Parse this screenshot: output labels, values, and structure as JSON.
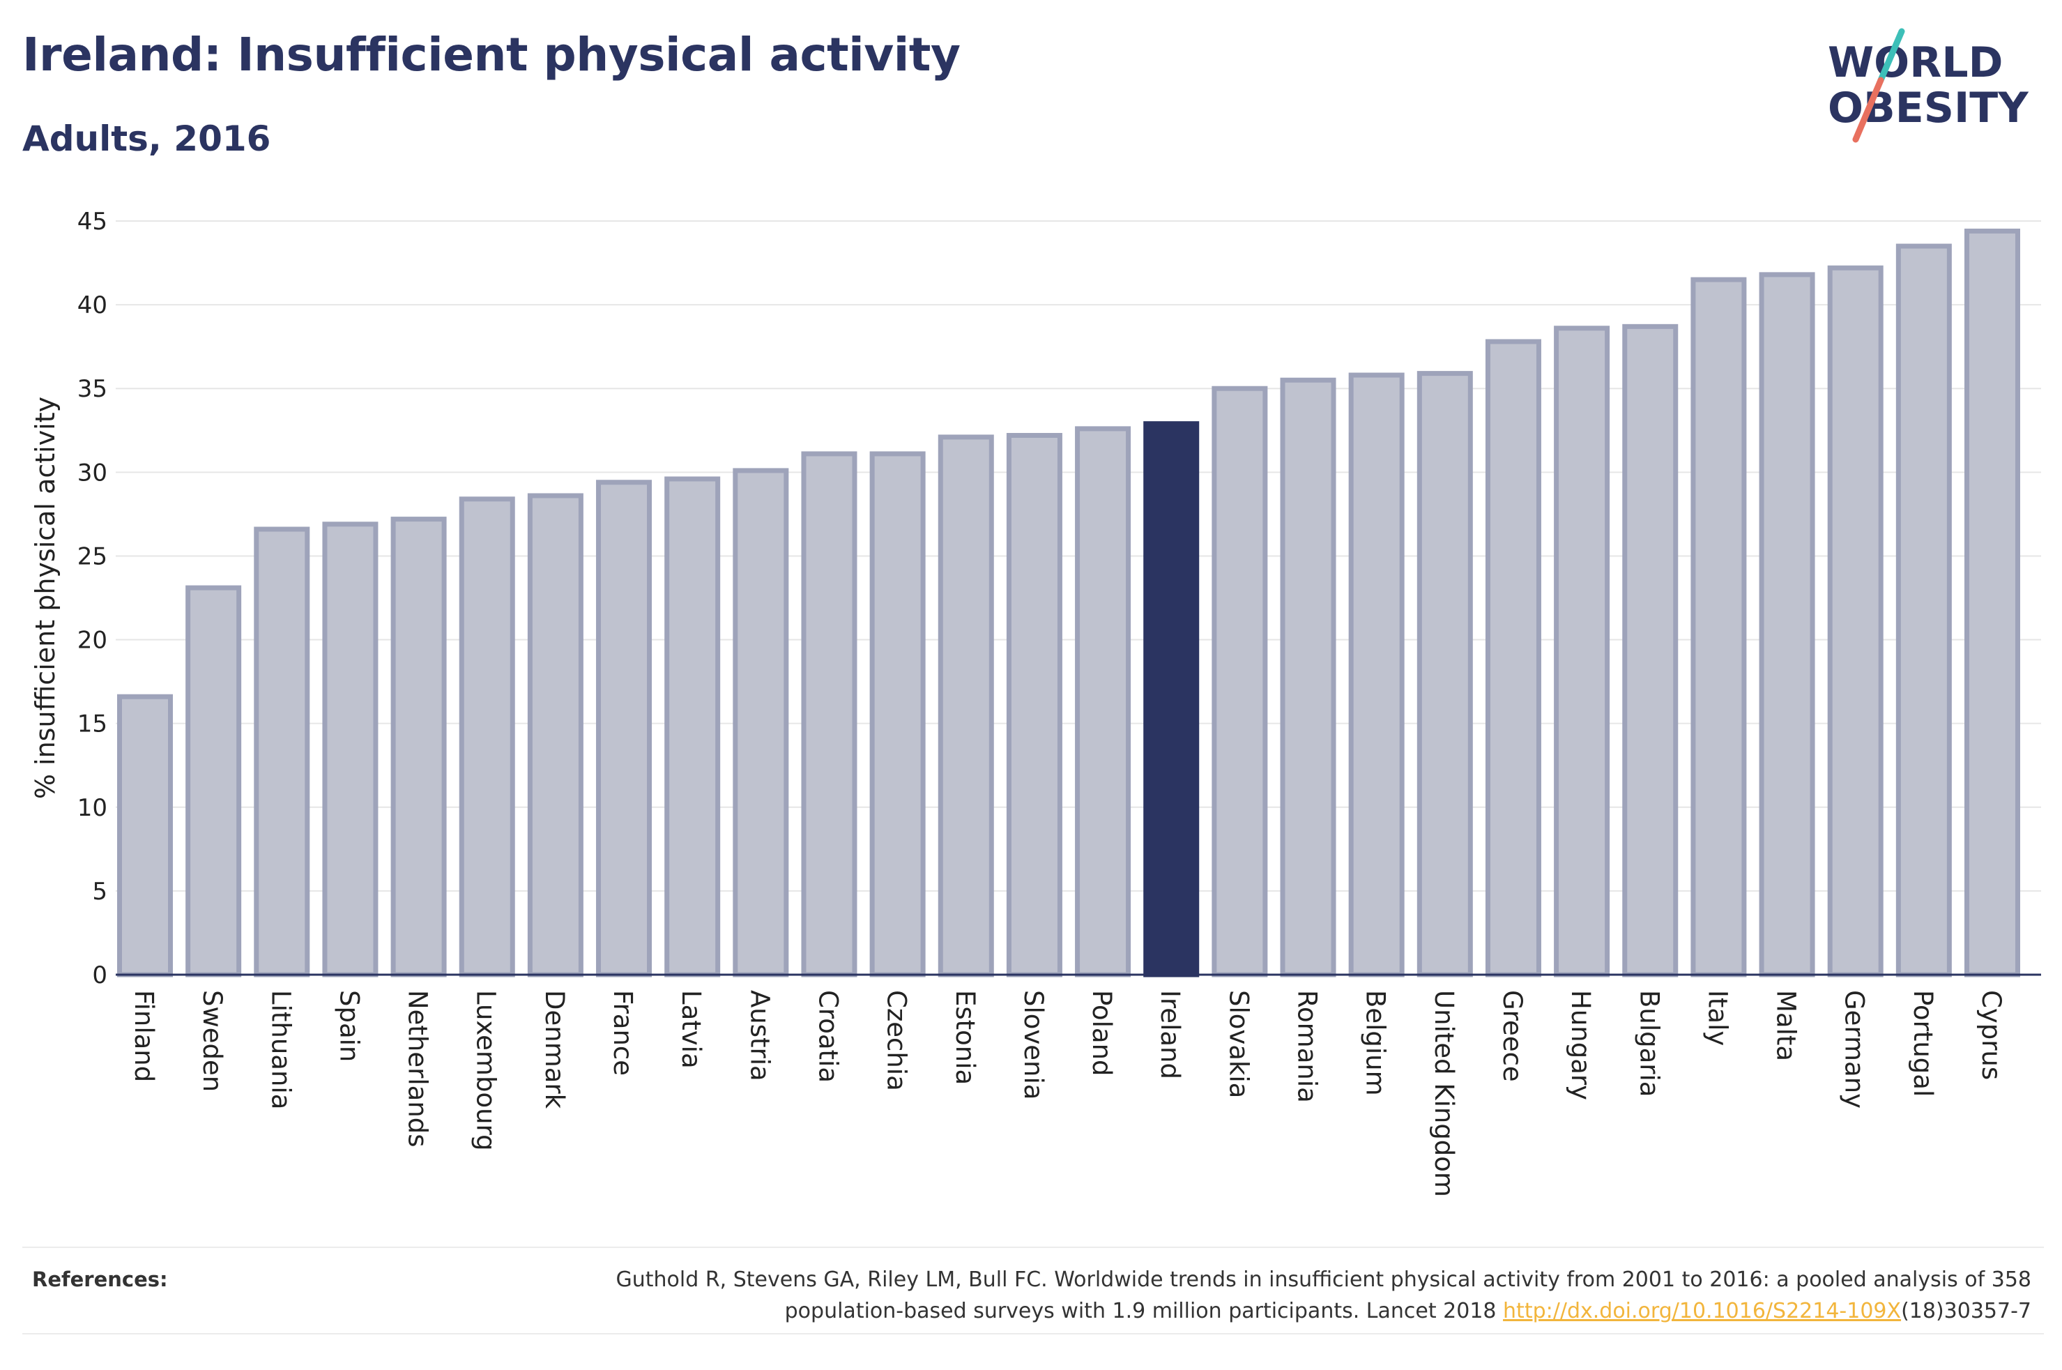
{
  "header": {
    "title": "Ireland: Insufficient physical activity",
    "subtitle": "Adults, 2016"
  },
  "logo": {
    "line1": "WORLD",
    "line2": "OBESITY",
    "slash_colors": [
      "#3dbfb8",
      "#e8705f"
    ]
  },
  "colors": {
    "highlight": "#2b3461",
    "bar_fill": "#bfc2cf",
    "bar_stroke": "#9ea3ba",
    "axis": "#2b3461",
    "grid": "#e6e6e6"
  },
  "chart_data": {
    "type": "bar",
    "ylabel": "% insufficient physical activity",
    "ylim": [
      0,
      45
    ],
    "yticks": [
      0,
      5,
      10,
      15,
      20,
      25,
      30,
      35,
      40,
      45
    ],
    "grid": true,
    "highlight": "Ireland",
    "categories": [
      "Finland",
      "Sweden",
      "Lithuania",
      "Spain",
      "Netherlands",
      "Luxembourg",
      "Denmark",
      "France",
      "Latvia",
      "Austria",
      "Croatia",
      "Czechia",
      "Estonia",
      "Slovenia",
      "Poland",
      "Ireland",
      "Slovakia",
      "Romania",
      "Belgium",
      "United Kingdom",
      "Greece",
      "Hungary",
      "Bulgaria",
      "Italy",
      "Malta",
      "Germany",
      "Portugal",
      "Cyprus"
    ],
    "values": [
      16.6,
      23.1,
      26.6,
      26.9,
      27.2,
      28.4,
      28.6,
      29.4,
      29.6,
      30.1,
      31.1,
      31.1,
      32.1,
      32.2,
      32.6,
      32.9,
      35.0,
      35.5,
      35.8,
      35.9,
      37.8,
      38.6,
      38.7,
      41.5,
      41.8,
      42.2,
      43.5,
      44.4
    ]
  },
  "references": {
    "label": "References:",
    "text_line1": "Guthold R, Stevens GA, Riley LM, Bull FC. Worldwide trends in insufficient physical activity from 2001 to 2016: a pooled analysis of 358",
    "text_line2_before": "population-based surveys with 1.9 million participants. Lancet 2018 ",
    "link": "http://dx.doi.org/10.1016/S2214-109X",
    "text_line2_after": "(18)30357-7"
  }
}
